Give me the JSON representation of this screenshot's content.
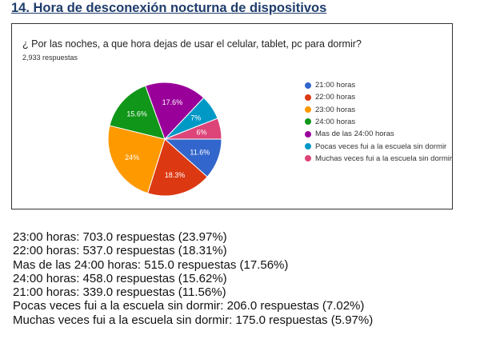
{
  "heading": "14. Hora de desconexión nocturna de dispositivos",
  "chart_data": {
    "type": "pie",
    "title": "¿ Por las noches, a que hora dejas de usar el celular, tablet, pc para dormir?",
    "subtitle": "2,933 respuestas",
    "legend_position": "right",
    "categories": [
      "21:00 horas",
      "22:00 horas",
      "23:00 horas",
      "24:00 horas",
      "Mas de las 24:00 horas",
      "Pocas veces fui a la escuela sin dormir",
      "Muchas veces fui a la escuela sin dormir"
    ],
    "values": [
      339,
      537,
      703,
      458,
      515,
      206,
      175
    ],
    "labels": [
      "11.6%",
      "18.3%",
      "24%",
      "15.6%",
      "17.6%",
      "7%",
      "6%"
    ],
    "colors": [
      "#3366cc",
      "#dc3912",
      "#ff9900",
      "#109618",
      "#990099",
      "#0099c6",
      "#dd4477"
    ]
  },
  "summary_lines": [
    "23:00 horas: 703.0 respuestas (23.97%)",
    "22:00 horas: 537.0 respuestas (18.31%)",
    "Mas de las 24:00 horas: 515.0 respuestas (17.56%)",
    "24:00 horas: 458.0 respuestas (15.62%)",
    "21:00 horas: 339.0 respuestas (11.56%)",
    "Pocas veces fui a la escuela sin dormir: 206.0 respuestas (7.02%)",
    "Muchas veces fui a la escuela sin dormir: 175.0 respuestas (5.97%)"
  ]
}
